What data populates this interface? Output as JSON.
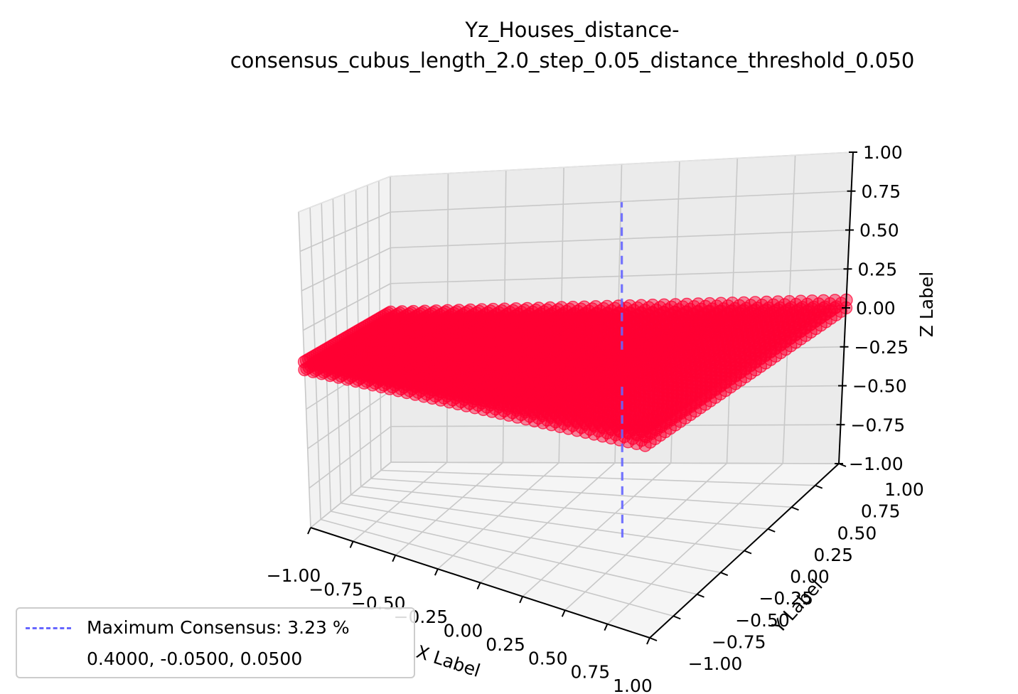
{
  "chart_data": {
    "type": "scatter",
    "title_line1": "Yz_Houses_distance-",
    "title_line2": "consensus_cubus_length_2.0_step_0.05_distance_threshold_0.050",
    "xlabel": "X Label",
    "ylabel": "Y Label",
    "zlabel": "Z Label",
    "xlim": [
      -1.0,
      1.0
    ],
    "ylim": [
      -1.0,
      1.0
    ],
    "zlim": [
      -1.0,
      1.0
    ],
    "x_ticks": [
      "−1.00",
      "−0.75",
      "−0.50",
      "−0.25",
      "0.00",
      "0.25",
      "0.50",
      "0.75",
      "1.00"
    ],
    "y_ticks": [
      "−1.00",
      "−0.75",
      "−0.50",
      "−0.25",
      "0.00",
      "0.25",
      "0.50",
      "0.75",
      "1.00"
    ],
    "z_ticks": [
      "−1.00",
      "−0.75",
      "−0.50",
      "−0.25",
      "0.00",
      "0.25",
      "0.50",
      "0.75",
      "1.00"
    ],
    "scatter_color": "#ff0033",
    "points_grid": {
      "x_range": [
        -1.0,
        1.0
      ],
      "y_range": [
        -1.0,
        1.0
      ],
      "z_range": [
        0.0,
        0.05
      ],
      "step": 0.05
    },
    "line": {
      "x": 0.4,
      "y": -0.05,
      "z_range": [
        -1.0,
        1.0
      ],
      "color": "#6666ff",
      "style": "dashed"
    },
    "grid": true,
    "legend": {
      "placement": "lower-left",
      "entries": [
        "Maximum Consensus: 3.23 %",
        "0.4000, -0.0500, 0.0500"
      ]
    }
  }
}
